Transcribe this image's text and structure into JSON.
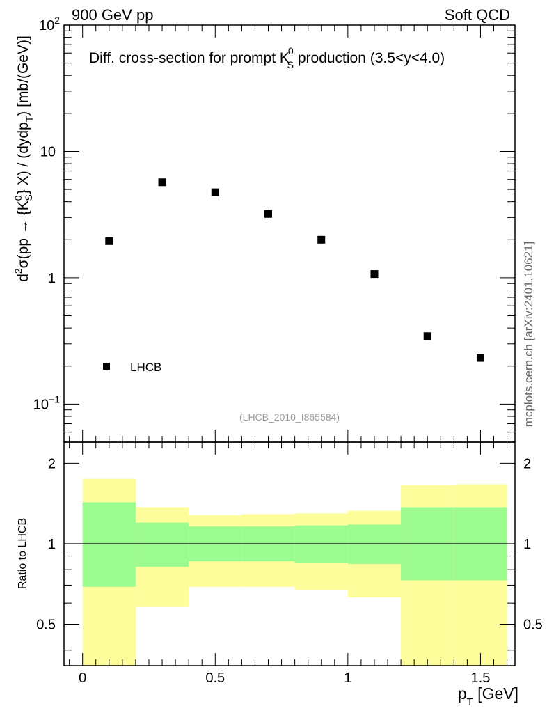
{
  "header": {
    "left_label": "900 GeV pp",
    "right_label": "Soft QCD"
  },
  "side_label": "mcplots.cern.ch [arXiv:2401.10621]",
  "chart_data": [
    {
      "type": "scatter",
      "title_main": "Diff. cross-section for prompt K",
      "title_sup": "0",
      "title_sub": "S",
      "title_tail": " production (3.5<y<4.0)",
      "analysis_tag": "(LHCB_2010_I865584)",
      "ylabel_parts": [
        "d",
        "2",
        "σ(pp → {K",
        "0",
        "S",
        "} X) / (dydp",
        "T",
        ") [mb/(GeV)]"
      ],
      "yscale": "log",
      "ylim": [
        0.05,
        100
      ],
      "xlim": [
        -0.07,
        1.63
      ],
      "y_ticks": [
        {
          "value": 100,
          "base": "10",
          "exp": "2"
        },
        {
          "value": 10,
          "base": "10",
          "exp": ""
        },
        {
          "value": 1,
          "base": "1",
          "exp": ""
        },
        {
          "value": 0.1,
          "base": "10",
          "exp": "−1"
        }
      ],
      "series": [
        {
          "name": "LHCB",
          "x": [
            0.1,
            0.3,
            0.5,
            0.7,
            0.9,
            1.1,
            1.3,
            1.5
          ],
          "y": [
            1.95,
            5.7,
            4.75,
            3.2,
            2.0,
            1.07,
            0.345,
            0.232
          ]
        }
      ],
      "legend": [
        {
          "label": "LHCB",
          "marker": "square"
        }
      ],
      "legend_position": "bottom-left"
    },
    {
      "type": "band",
      "ylabel": "Ratio to LHCB",
      "xlabel_base": "p",
      "xlabel_sub": "T",
      "xlabel_unit": " [GeV]",
      "yscale": "log",
      "ylim": [
        0.35,
        2.4
      ],
      "xlim": [
        -0.07,
        1.63
      ],
      "y_ticks": [
        {
          "value": 2,
          "label": "2"
        },
        {
          "value": 1,
          "label": "1"
        },
        {
          "value": 0.5,
          "label": "0.5"
        }
      ],
      "x_ticks": [
        {
          "value": 0,
          "label": "0"
        },
        {
          "value": 0.5,
          "label": "0.5"
        },
        {
          "value": 1,
          "label": "1"
        },
        {
          "value": 1.5,
          "label": "1.5"
        }
      ],
      "reference_line": 1,
      "bins": [
        {
          "x0": 0.0,
          "x1": 0.2,
          "green": [
            0.69,
            1.43
          ],
          "yellow": [
            0.2,
            1.75
          ]
        },
        {
          "x0": 0.2,
          "x1": 0.4,
          "green": [
            0.82,
            1.2
          ],
          "yellow": [
            0.58,
            1.37
          ]
        },
        {
          "x0": 0.4,
          "x1": 0.6,
          "green": [
            0.86,
            1.16
          ],
          "yellow": [
            0.69,
            1.28
          ]
        },
        {
          "x0": 0.6,
          "x1": 0.8,
          "green": [
            0.86,
            1.16
          ],
          "yellow": [
            0.69,
            1.29
          ]
        },
        {
          "x0": 0.8,
          "x1": 1.0,
          "green": [
            0.85,
            1.17
          ],
          "yellow": [
            0.67,
            1.3
          ]
        },
        {
          "x0": 1.0,
          "x1": 1.2,
          "green": [
            0.84,
            1.18
          ],
          "yellow": [
            0.63,
            1.33
          ]
        },
        {
          "x0": 1.2,
          "x1": 1.4,
          "green": [
            0.73,
            1.37
          ],
          "yellow": [
            0.2,
            1.66
          ]
        },
        {
          "x0": 1.4,
          "x1": 1.6,
          "green": [
            0.73,
            1.37
          ],
          "yellow": [
            0.2,
            1.67
          ]
        }
      ],
      "colors": {
        "green": "#9cfb8f",
        "yellow": "#fdfd9c"
      }
    }
  ]
}
